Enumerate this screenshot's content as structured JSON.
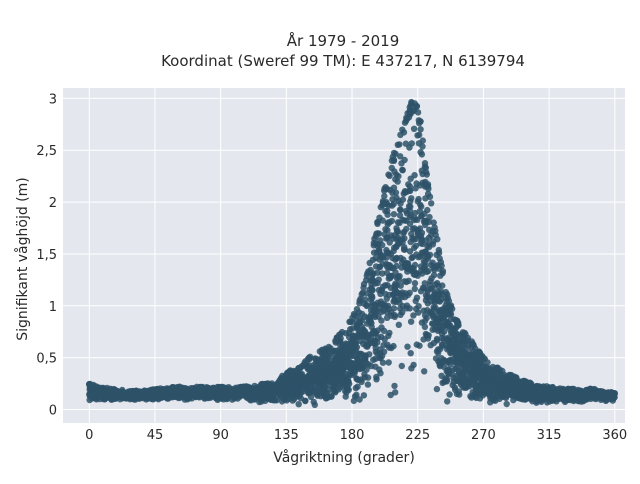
{
  "chart_data": {
    "type": "scatter",
    "title_line1": "År 1979 - 2019",
    "title_line2": "Koordinat (Sweref 99 TM): E 437217, N 6139794",
    "xlabel": "Vågriktning (grader)",
    "ylabel": "Signifikant våghöjd (m)",
    "xlim": [
      -18,
      367
    ],
    "ylim": [
      -0.13,
      3.1
    ],
    "xticks": [
      {
        "value": 0,
        "label": "0"
      },
      {
        "value": 45,
        "label": "45"
      },
      {
        "value": 90,
        "label": "90"
      },
      {
        "value": 135,
        "label": "135"
      },
      {
        "value": 180,
        "label": "180"
      },
      {
        "value": 225,
        "label": "225"
      },
      {
        "value": 270,
        "label": "270"
      },
      {
        "value": 315,
        "label": "315"
      },
      {
        "value": 360,
        "label": "360"
      }
    ],
    "yticks": [
      {
        "value": 0,
        "label": "0"
      },
      {
        "value": 0.5,
        "label": "0,5"
      },
      {
        "value": 1,
        "label": "1"
      },
      {
        "value": 1.5,
        "label": "1,5"
      },
      {
        "value": 2,
        "label": "2"
      },
      {
        "value": 2.5,
        "label": "2,5"
      },
      {
        "value": 3,
        "label": "3"
      }
    ],
    "grid": true,
    "background": "#e5e7ef",
    "marker_color": "#2e5268",
    "envelope": {
      "direction": [
        0,
        15,
        30,
        45,
        60,
        75,
        90,
        105,
        120,
        135,
        150,
        160,
        170,
        180,
        185,
        190,
        195,
        200,
        205,
        210,
        215,
        218,
        221,
        224,
        227,
        230,
        235,
        240,
        245,
        250,
        255,
        260,
        265,
        270,
        280,
        290,
        300,
        315,
        330,
        345,
        360
      ],
      "max_height": [
        0.25,
        0.2,
        0.18,
        0.2,
        0.22,
        0.22,
        0.22,
        0.22,
        0.25,
        0.35,
        0.5,
        0.58,
        0.7,
        0.88,
        1.05,
        1.3,
        1.65,
        2.0,
        2.3,
        2.55,
        2.75,
        2.9,
        2.98,
        2.95,
        2.8,
        2.4,
        1.95,
        1.5,
        1.15,
        0.92,
        0.78,
        0.7,
        0.6,
        0.5,
        0.4,
        0.33,
        0.27,
        0.22,
        0.2,
        0.2,
        0.16
      ],
      "min_height": [
        0.07,
        0.07,
        0.08,
        0.08,
        0.08,
        0.08,
        0.08,
        0.08,
        0.05,
        0.03,
        0.0,
        0.0,
        0.0,
        0.0,
        0.0,
        0.0,
        0.0,
        0.0,
        0.0,
        0.0,
        0.0,
        0.0,
        0.0,
        0.0,
        0.0,
        0.0,
        0.0,
        0.0,
        0.0,
        0.0,
        0.0,
        0.0,
        0.0,
        0.0,
        0.02,
        0.03,
        0.04,
        0.05,
        0.06,
        0.07,
        0.08
      ]
    }
  }
}
